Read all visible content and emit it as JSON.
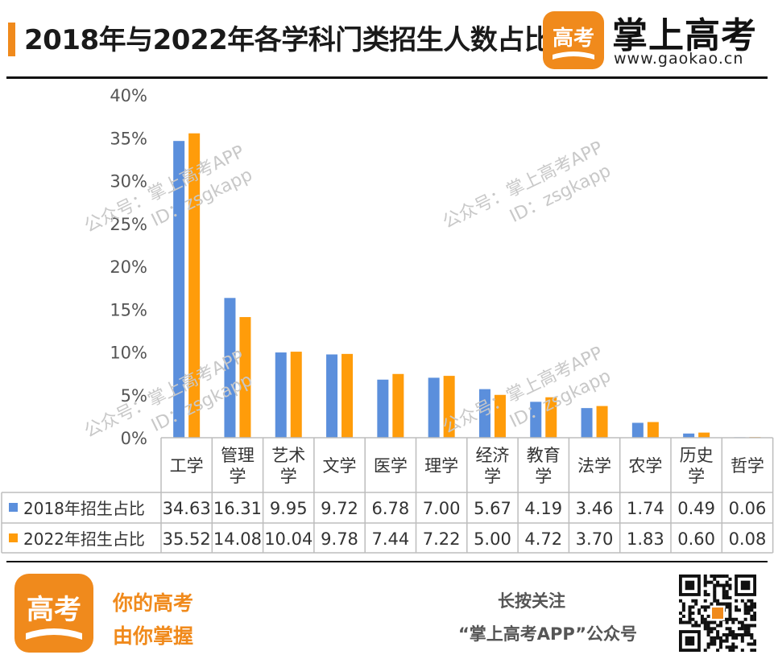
{
  "header": {
    "title": "2018年与2022年各学科门类招生人数占比",
    "brand_name": "掌上高考",
    "brand_url": "www.gaokao.cn",
    "logo_char": "高考"
  },
  "watermark": {
    "line1": "公众号：掌上高考APP",
    "line2": "ID：zsgkapp"
  },
  "colors": {
    "series_2018": "#5b8fdc",
    "series_2022": "#ff9c0a",
    "accent": "#f08a1c"
  },
  "chart_data": {
    "type": "bar",
    "title": "2018年与2022年各学科门类招生人数占比",
    "categories": [
      "工学",
      "管理学",
      "艺术学",
      "文学",
      "医学",
      "理学",
      "经济学",
      "教育学",
      "法学",
      "农学",
      "历史学",
      "哲学"
    ],
    "series": [
      {
        "name": "2018年招生占比",
        "values": [
          34.63,
          16.31,
          9.95,
          9.72,
          6.78,
          7.0,
          5.67,
          4.19,
          3.46,
          1.74,
          0.49,
          0.06
        ],
        "labels": [
          "34.63",
          "16.31",
          "9.95",
          "9.72",
          "6.78",
          "7.00",
          "5.67",
          "4.19",
          "3.46",
          "1.74",
          "0.49",
          "0.06"
        ]
      },
      {
        "name": "2022年招生占比",
        "values": [
          35.52,
          14.08,
          10.04,
          9.78,
          7.44,
          7.22,
          5.0,
          4.72,
          3.7,
          1.83,
          0.6,
          0.08
        ],
        "labels": [
          "35.52",
          "14.08",
          "10.04",
          "9.78",
          "7.44",
          "7.22",
          "5.00",
          "4.72",
          "3.70",
          "1.83",
          "0.60",
          "0.08"
        ]
      }
    ],
    "ylim": [
      0,
      40
    ],
    "yticks": [
      "0%",
      "5%",
      "10%",
      "15%",
      "20%",
      "25%",
      "30%",
      "35%",
      "40%"
    ],
    "grid": false,
    "legend": "data-table"
  },
  "footer": {
    "slogan_line1": "你的高考",
    "slogan_line2": "由你掌握",
    "follow_line1": "长按关注",
    "follow_line2": "“掌上高考APP”公众号"
  }
}
